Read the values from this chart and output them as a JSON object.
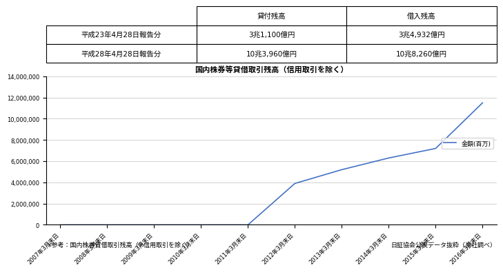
{
  "table_header": [
    "",
    "貸付残高",
    "借入残高"
  ],
  "table_rows": [
    [
      "平成23年4月28日報告分",
      "3兆1,100億円",
      "3兆4,932億円"
    ],
    [
      "平成28年4月28日報告分",
      "10兆3,960億円",
      "10兆8,260億円"
    ]
  ],
  "chart_title": "国内株券等貸借取引残高（信用取引を除く）",
  "x_labels": [
    "2007年3月末日",
    "2008年3月末日",
    "2009年3月末日",
    "2010年3月末日",
    "2011年3月末日",
    "2012年3月末日",
    "2013年3月末日",
    "2014年3月末日",
    "2015年3月末日",
    "2016年3月末日"
  ],
  "line_data_y": [
    0,
    0,
    0,
    0,
    0,
    3900000,
    5200000,
    6300000,
    7200000,
    11500000
  ],
  "line_color": "#4472C4",
  "legend_label": "金額(百万)",
  "ylim": [
    0,
    14000000
  ],
  "ytick_step": 2000000,
  "note_left": "※参考：国内株券貸借取引残高（※信用取引を除く）",
  "note_right": "日証協会公表データ抜粋（当社調べ）",
  "bg_color": "#ffffff",
  "border_color": "#000000"
}
